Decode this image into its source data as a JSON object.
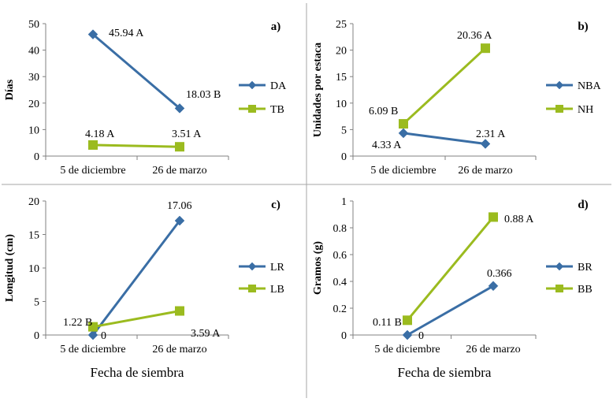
{
  "chart_data": [
    {
      "panel": "a)",
      "type": "line",
      "categories": [
        "5 de diciembre",
        "26 de marzo"
      ],
      "ylabel": "Días",
      "xlabel": "",
      "ylim": [
        0,
        50
      ],
      "yticks": [
        0,
        10,
        20,
        30,
        40,
        50
      ],
      "series": [
        {
          "name": "DA",
          "color": "#3A6EA5",
          "marker": "diamond",
          "values": [
            45.94,
            18.03
          ],
          "labels": [
            "45.94 A",
            "18.03 B"
          ]
        },
        {
          "name": "TB",
          "color": "#9BBB1F",
          "marker": "square",
          "values": [
            4.18,
            3.51
          ],
          "labels": [
            "4.18 A",
            "3.51 A"
          ]
        }
      ]
    },
    {
      "panel": "b)",
      "type": "line",
      "categories": [
        "5 de diciembre",
        "26 de marzo"
      ],
      "ylabel": "Unidades por estaca",
      "xlabel": "",
      "ylim": [
        0,
        25
      ],
      "yticks": [
        0,
        5,
        10,
        15,
        20,
        25
      ],
      "series": [
        {
          "name": "NBA",
          "color": "#3A6EA5",
          "marker": "diamond",
          "values": [
            4.33,
            2.31
          ],
          "labels": [
            "4.33 A",
            "2.31 A"
          ]
        },
        {
          "name": "NH",
          "color": "#9BBB1F",
          "marker": "square",
          "values": [
            6.09,
            20.36
          ],
          "labels": [
            "6.09 B",
            "20.36 A"
          ]
        }
      ]
    },
    {
      "panel": "c)",
      "type": "line",
      "categories": [
        "5 de diciembre",
        "26 de marzo"
      ],
      "ylabel": "Longitud (cm)",
      "xlabel": "Fecha de siembra",
      "ylim": [
        0,
        20
      ],
      "yticks": [
        0,
        5,
        10,
        15,
        20
      ],
      "series": [
        {
          "name": "LR",
          "color": "#3A6EA5",
          "marker": "diamond",
          "values": [
            0,
            17.06
          ],
          "labels": [
            "0",
            "17.06"
          ]
        },
        {
          "name": "LB",
          "color": "#9BBB1F",
          "marker": "square",
          "values": [
            1.22,
            3.59
          ],
          "labels": [
            "1.22 B",
            "3.59 A"
          ]
        }
      ]
    },
    {
      "panel": "d)",
      "type": "line",
      "categories": [
        "5 de diciembre",
        "26 de marzo"
      ],
      "ylabel": "Gramos (g)",
      "xlabel": "Fecha de siembra",
      "ylim": [
        0,
        1
      ],
      "yticks": [
        0,
        0.2,
        0.4,
        0.6,
        0.8,
        1
      ],
      "series": [
        {
          "name": "BR",
          "color": "#3A6EA5",
          "marker": "diamond",
          "values": [
            0,
            0.366
          ],
          "labels": [
            "0",
            "0.366"
          ]
        },
        {
          "name": "BB",
          "color": "#9BBB1F",
          "marker": "square",
          "values": [
            0.11,
            0.88
          ],
          "labels": [
            "0.11 B",
            "0.88 A"
          ]
        }
      ]
    }
  ]
}
